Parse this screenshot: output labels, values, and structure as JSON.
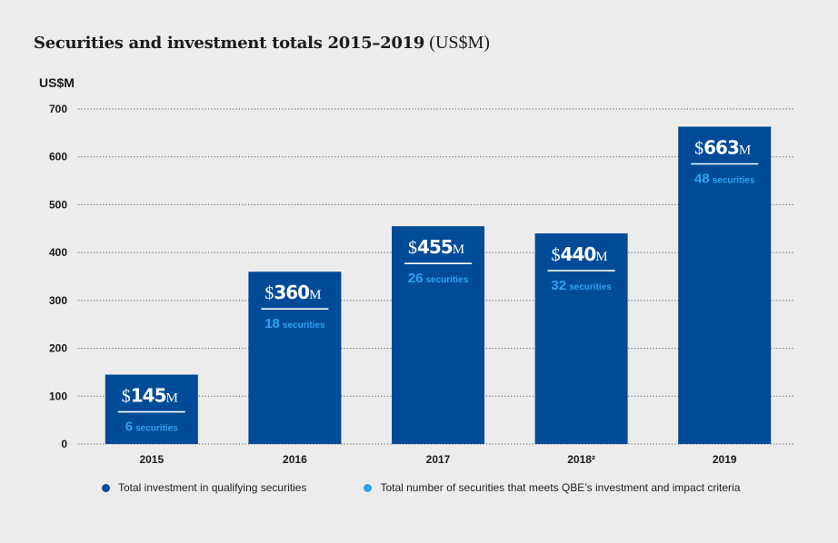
{
  "title": "Securities and investment totals 2015–2019",
  "title_unit": "(US$M)",
  "colors": {
    "bar": "#004b98",
    "count": "#2ea3f2",
    "label": "#ffffff",
    "grid": "#555555"
  },
  "chart_data": {
    "type": "bar",
    "ylabel": "US$M",
    "ylim": [
      0,
      700
    ],
    "yticks": [
      "0",
      "100",
      "200",
      "300",
      "400",
      "500",
      "600",
      "700"
    ],
    "categories": [
      "2015",
      "2016",
      "2017",
      "2018²",
      "2019"
    ],
    "series": [
      {
        "name": "Total investment in qualifying securities",
        "values": [
          145,
          360,
          455,
          440,
          663
        ]
      },
      {
        "name": "Total number of securities that meets QBE’s investment and impact criteria",
        "values": [
          6,
          18,
          26,
          32,
          48
        ]
      }
    ],
    "value_labels": [
      {
        "prefix": "$",
        "number": "145",
        "suffix": "M",
        "count": "6",
        "count_unit": "securities"
      },
      {
        "prefix": "$",
        "number": "360",
        "suffix": "M",
        "count": "18",
        "count_unit": "securities"
      },
      {
        "prefix": "$",
        "number": "455",
        "suffix": "M",
        "count": "26",
        "count_unit": "securities"
      },
      {
        "prefix": "$",
        "number": "440",
        "suffix": "M",
        "count": "32",
        "count_unit": "securities"
      },
      {
        "prefix": "$",
        "number": "663",
        "suffix": "M",
        "count": "48",
        "count_unit": "securities"
      }
    ],
    "grid": true,
    "legend": "bottom"
  }
}
